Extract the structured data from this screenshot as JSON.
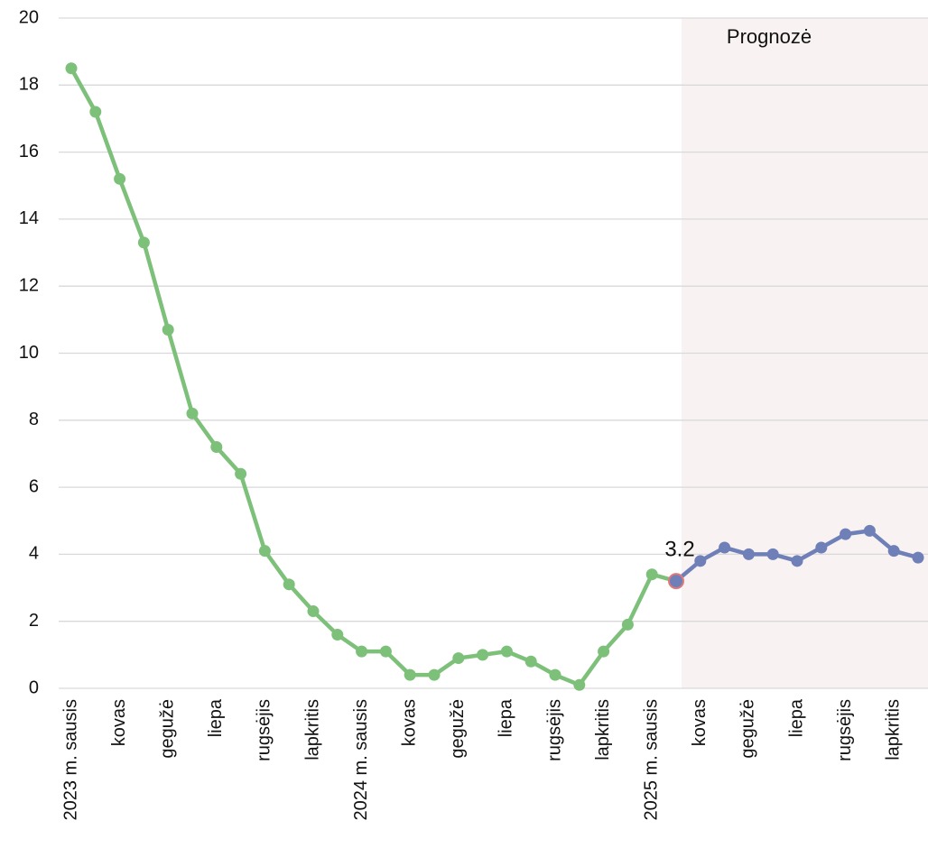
{
  "chart_data": {
    "type": "line",
    "categories": [
      "2023 m. sausis",
      null,
      "kovas",
      null,
      "gegužė",
      null,
      "liepa",
      null,
      "rugsėjis",
      null,
      "lapkritis",
      null,
      "2024 m. sausis",
      null,
      "kovas",
      null,
      "gegužė",
      null,
      "liepa",
      null,
      "rugsėjis",
      null,
      "lapkritis",
      null,
      "2025 m. sausis",
      null,
      "kovas",
      null,
      "gegužė",
      null,
      "liepa",
      null,
      "rugsėjis",
      null,
      "lapkritis",
      null
    ],
    "series": [
      {
        "color": "#7dc07a",
        "values": [
          18.5,
          17.2,
          15.2,
          13.3,
          10.7,
          8.2,
          7.2,
          6.4,
          4.1,
          3.1,
          2.3,
          1.6,
          1.1,
          1.1,
          0.4,
          0.4,
          0.9,
          1.0,
          1.1,
          0.8,
          0.4,
          0.1,
          1.1,
          1.9,
          3.4,
          3.2,
          null,
          null,
          null,
          null,
          null,
          null,
          null,
          null,
          null,
          null
        ]
      },
      {
        "color": "#6f7fb8",
        "values": [
          null,
          null,
          null,
          null,
          null,
          null,
          null,
          null,
          null,
          null,
          null,
          null,
          null,
          null,
          null,
          null,
          null,
          null,
          null,
          null,
          null,
          null,
          null,
          null,
          null,
          3.2,
          3.8,
          4.2,
          4.0,
          4.0,
          3.8,
          4.2,
          4.6,
          4.7,
          4.1,
          3.9
        ],
        "value_labels": [
          null,
          null,
          null,
          null,
          null,
          null,
          null,
          null,
          null,
          null,
          null,
          null,
          null,
          null,
          null,
          null,
          null,
          null,
          null,
          null,
          null,
          null,
          null,
          null,
          null,
          "3.2",
          null,
          null,
          null,
          null,
          null,
          null,
          null,
          null,
          null,
          null
        ]
      }
    ],
    "shaded_region": {
      "label": "Prognozė",
      "color": "#f8f3f2"
    },
    "ylim": [
      0,
      20
    ],
    "yticks": [
      0,
      2,
      4,
      6,
      8,
      10,
      12,
      14,
      16,
      18,
      20
    ],
    "grid": true
  }
}
